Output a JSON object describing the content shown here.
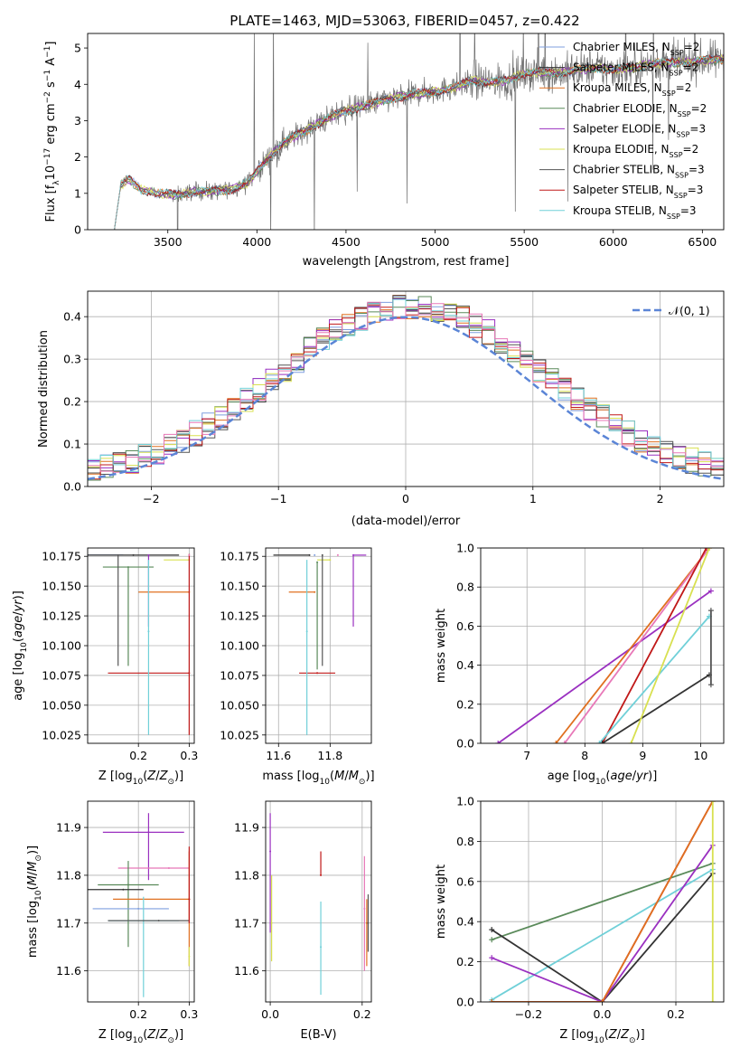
{
  "title": "PLATE=1463, MJD=53063, FIBERID=0457, z=0.422",
  "colors": {
    "Chabrier MILES": "#7f9fdf",
    "Salpeter MILES": "#333333",
    "Kroupa MILES": "#e07020",
    "Chabrier ELODIE": "#5a8a5a",
    "Salpeter ELODIE": "#9a30c0",
    "Kroupa ELODIE": "#d8e050",
    "Chabrier STELIB": "#555555",
    "Salpeter STELIB": "#c01818",
    "Kroupa STELIB": "#70d0d8",
    "extra_pink": "#e878b8",
    "normal": "#5b85d6"
  },
  "chart_data": [
    {
      "id": "spectrum",
      "type": "line",
      "xlabel": "wavelength [Angstrom, rest frame]",
      "ylabel": "Flux [f_λ10^-17 erg cm^-2 s^-1 A^-1]",
      "xlim": [
        3050,
        6620
      ],
      "ylim": [
        0,
        5.4
      ],
      "xticks": [
        3500,
        4000,
        4500,
        5000,
        5500,
        6000,
        6500
      ],
      "yticks": [
        0,
        1,
        2,
        3,
        4,
        5
      ],
      "grid": false,
      "legend_position": "top-right",
      "legend": [
        {
          "name": "Chabrier MILES",
          "nssp": "2"
        },
        {
          "name": "Salpeter MILES",
          "nssp": "2"
        },
        {
          "name": "Kroupa MILES",
          "nssp": "2"
        },
        {
          "name": "Chabrier ELODIE",
          "nssp": "2"
        },
        {
          "name": "Salpeter ELODIE",
          "nssp": "3"
        },
        {
          "name": "Kroupa ELODIE",
          "nssp": "2"
        },
        {
          "name": "Chabrier STELIB",
          "nssp": "3"
        },
        {
          "name": "Salpeter STELIB",
          "nssp": "3"
        },
        {
          "name": "Kroupa STELIB",
          "nssp": "3"
        }
      ],
      "model_start": 3200,
      "data_start": 3500,
      "continuum": [
        [
          3200,
          0
        ],
        [
          3230,
          1.2
        ],
        [
          3280,
          1.4
        ],
        [
          3350,
          1.1
        ],
        [
          3450,
          1.0
        ],
        [
          3550,
          0.95
        ],
        [
          3650,
          1.05
        ],
        [
          3750,
          1.05
        ],
        [
          3850,
          1.1
        ],
        [
          3950,
          1.3
        ],
        [
          4050,
          1.9
        ],
        [
          4150,
          2.4
        ],
        [
          4300,
          2.8
        ],
        [
          4450,
          3.2
        ],
        [
          4600,
          3.4
        ],
        [
          4750,
          3.6
        ],
        [
          4900,
          3.75
        ],
        [
          5000,
          3.8
        ],
        [
          5100,
          3.9
        ],
        [
          5200,
          4.1
        ],
        [
          5300,
          4.05
        ],
        [
          5400,
          4.1
        ],
        [
          5500,
          4.3
        ],
        [
          5600,
          4.35
        ],
        [
          5700,
          4.3
        ],
        [
          5800,
          4.4
        ],
        [
          5900,
          4.45
        ],
        [
          6000,
          4.4
        ],
        [
          6100,
          4.45
        ],
        [
          6200,
          4.55
        ],
        [
          6300,
          4.6
        ],
        [
          6400,
          4.6
        ],
        [
          6500,
          4.65
        ],
        [
          6620,
          4.7
        ]
      ]
    },
    {
      "id": "residuals",
      "type": "line",
      "xlabel": "(data-model)/error",
      "ylabel": "Normed distribution",
      "xlim": [
        -2.5,
        2.5
      ],
      "ylim": [
        0,
        0.46
      ],
      "xticks": [
        -2,
        -1,
        0,
        1,
        2
      ],
      "yticks": [
        0.0,
        0.1,
        0.2,
        0.3,
        0.4
      ],
      "grid": true,
      "legend_label": "𝒩(0, 1)",
      "legend_position": "top-right"
    },
    {
      "id": "z_age",
      "type": "scatter",
      "xlabel": "Z [log10(Z/Z⊙)]",
      "ylabel": "age [log10(age/yr)]",
      "xlim": [
        0.1,
        0.31
      ],
      "ylim": [
        10.018,
        10.182
      ],
      "xticks": [
        0.2,
        0.3
      ],
      "yticks": [
        10.025,
        10.05,
        10.075,
        10.1,
        10.125,
        10.15,
        10.175
      ],
      "grid": true,
      "points": [
        {
          "model": "Chabrier MILES",
          "x": 0.1,
          "y": 10.176,
          "xerr": [
            0.0,
            0.07
          ],
          "yerr": [
            0.0,
            0.0
          ]
        },
        {
          "model": "Salpeter MILES",
          "x": 0.19,
          "y": 10.176,
          "xerr": [
            0.09,
            0.09
          ],
          "yerr": [
            0.0,
            0.0
          ]
        },
        {
          "model": "Kroupa MILES",
          "x": 0.3,
          "y": 10.145,
          "xerr": [
            0.1,
            0.0
          ],
          "yerr": [
            0.0,
            0.0
          ]
        },
        {
          "model": "Chabrier ELODIE",
          "x": 0.18,
          "y": 10.166,
          "xerr": [
            0.05,
            0.05
          ],
          "yerr": [
            0.083,
            0.0
          ]
        },
        {
          "model": "Salpeter ELODIE",
          "x": 0.22,
          "y": 10.176,
          "xerr": [
            0.0,
            0.0
          ],
          "yerr": [
            0.06,
            0.0
          ]
        },
        {
          "model": "Kroupa ELODIE",
          "x": 0.3,
          "y": 10.172,
          "xerr": [
            0.05,
            0.0
          ],
          "yerr": [
            0.0,
            0.0
          ]
        },
        {
          "model": "Chabrier STELIB",
          "x": 0.16,
          "y": 10.176,
          "xerr": [
            0.0,
            0.0
          ],
          "yerr": [
            0.093,
            0.0
          ]
        },
        {
          "model": "Salpeter STELIB",
          "x": 0.3,
          "y": 10.077,
          "xerr": [
            0.16,
            0.0
          ],
          "yerr": [
            0.052,
            0.1
          ]
        },
        {
          "model": "Kroupa STELIB",
          "x": 0.22,
          "y": 10.112,
          "xerr": [
            0.0,
            0.0
          ],
          "yerr": [
            0.087,
            0.06
          ]
        },
        {
          "model": "extra_pink",
          "x": 0.3,
          "y": 10.176,
          "xerr": [
            0.0,
            0.0
          ],
          "yerr": [
            0.0,
            0.0
          ]
        }
      ]
    },
    {
      "id": "mass_age",
      "type": "scatter",
      "xlabel": "mass [log10(M/M⊙)]",
      "ylabel": "",
      "xlim": [
        11.55,
        11.96
      ],
      "ylim": [
        10.018,
        10.182
      ],
      "xticks": [
        11.6,
        11.8
      ],
      "yticks": [
        10.025,
        10.05,
        10.075,
        10.1,
        10.125,
        10.15,
        10.175
      ],
      "grid": true,
      "points": [
        {
          "model": "Chabrier MILES",
          "x": 11.74,
          "y": 10.176,
          "xerr": [
            0.0,
            0.0
          ],
          "yerr": [
            0.0,
            0.0
          ]
        },
        {
          "model": "Salpeter MILES",
          "x": 11.72,
          "y": 10.176,
          "xerr": [
            0.14,
            0.0
          ],
          "yerr": [
            0.0,
            0.0
          ]
        },
        {
          "model": "Kroupa MILES",
          "x": 11.74,
          "y": 10.145,
          "xerr": [
            0.1,
            0.0
          ],
          "yerr": [
            0.0,
            0.0
          ]
        },
        {
          "model": "Chabrier ELODIE",
          "x": 11.75,
          "y": 10.17,
          "xerr": [
            0.0,
            0.0
          ],
          "yerr": [
            0.09,
            0.0
          ]
        },
        {
          "model": "Salpeter ELODIE",
          "x": 11.89,
          "y": 10.176,
          "xerr": [
            0.0,
            0.05
          ],
          "yerr": [
            0.06,
            0.0
          ]
        },
        {
          "model": "Kroupa ELODIE",
          "x": 11.8,
          "y": 10.172,
          "xerr": [
            0.05,
            0.0
          ],
          "yerr": [
            0.0,
            0.0
          ]
        },
        {
          "model": "Chabrier STELIB",
          "x": 11.77,
          "y": 10.176,
          "xerr": [
            0.0,
            0.0
          ],
          "yerr": [
            0.093,
            0.0
          ]
        },
        {
          "model": "Salpeter STELIB",
          "x": 11.75,
          "y": 10.077,
          "xerr": [
            0.07,
            0.07
          ],
          "yerr": [
            0.0,
            0.0
          ]
        },
        {
          "model": "Kroupa STELIB",
          "x": 11.71,
          "y": 10.112,
          "xerr": [
            0.0,
            0.0
          ],
          "yerr": [
            0.087,
            0.06
          ]
        },
        {
          "model": "extra_pink",
          "x": 11.83,
          "y": 10.176,
          "xerr": [
            0.0,
            0.0
          ],
          "yerr": [
            0.0,
            0.0
          ]
        }
      ]
    },
    {
      "id": "age_weight",
      "type": "line",
      "xlabel": "age [log10(age/yr)]",
      "ylabel": "mass weight",
      "xlim": [
        6.2,
        10.4
      ],
      "ylim": [
        0,
        1
      ],
      "xticks": [
        7,
        8,
        9,
        10
      ],
      "yticks": [
        0.0,
        0.2,
        0.4,
        0.6,
        0.8,
        1.0
      ],
      "grid": true,
      "series": [
        {
          "model": "Salpeter ELODIE",
          "x": [
            6.5,
            10.18
          ],
          "y": [
            0.0,
            0.78
          ]
        },
        {
          "model": "Kroupa MILES",
          "x": [
            7.5,
            10.15
          ],
          "y": [
            0.0,
            1.0
          ]
        },
        {
          "model": "extra_pink",
          "x": [
            7.65,
            10.15
          ],
          "y": [
            0.0,
            1.0
          ]
        },
        {
          "model": "Salpeter STELIB",
          "x": [
            8.3,
            10.1
          ],
          "y": [
            0.0,
            1.0
          ]
        },
        {
          "model": "Kroupa STELIB",
          "x": [
            8.25,
            10.15
          ],
          "y": [
            0.0,
            0.65
          ]
        },
        {
          "model": "Salpeter MILES",
          "x": [
            8.3,
            10.15
          ],
          "y": [
            0.0,
            0.35
          ]
        },
        {
          "model": "Kroupa ELODIE",
          "x": [
            8.8,
            10.15
          ],
          "y": [
            0.0,
            1.0
          ]
        },
        {
          "model": "Chabrier STELIB",
          "x": [
            10.18,
            10.18
          ],
          "y": [
            0.3,
            0.68
          ]
        }
      ]
    },
    {
      "id": "z_mass",
      "type": "scatter",
      "xlabel": "Z [log10(Z/Z⊙)]",
      "ylabel": "mass [log10(M/M⊙)]",
      "xlim": [
        0.1,
        0.31
      ],
      "ylim": [
        11.535,
        11.955
      ],
      "xticks": [
        0.2,
        0.3
      ],
      "yticks": [
        11.6,
        11.7,
        11.8,
        11.9
      ],
      "grid": true,
      "points": [
        {
          "model": "Salpeter ELODIE",
          "x": 0.22,
          "y": 11.89,
          "xerr": [
            0.09,
            0.07
          ],
          "yerr": [
            0.1,
            0.04
          ]
        },
        {
          "model": "extra_pink",
          "x": 0.26,
          "y": 11.815,
          "xerr": [
            0.1,
            0.04
          ],
          "yerr": [
            0.0,
            0.0
          ]
        },
        {
          "model": "Chabrier ELODIE",
          "x": 0.18,
          "y": 11.78,
          "xerr": [
            0.06,
            0.06
          ],
          "yerr": [
            0.13,
            0.05
          ]
        },
        {
          "model": "Salpeter MILES",
          "x": 0.17,
          "y": 11.77,
          "xerr": [
            0.07,
            0.04
          ],
          "yerr": [
            0.0,
            0.0
          ]
        },
        {
          "model": "Kroupa MILES",
          "x": 0.3,
          "y": 11.75,
          "xerr": [
            0.15,
            0.0
          ],
          "yerr": [
            0.14,
            0.1
          ]
        },
        {
          "model": "Chabrier MILES",
          "x": 0.2,
          "y": 11.73,
          "xerr": [
            0.09,
            0.06
          ],
          "yerr": [
            0.0,
            0.0
          ]
        },
        {
          "model": "Kroupa STELIB",
          "x": 0.21,
          "y": 11.705,
          "xerr": [
            0.07,
            0.07
          ],
          "yerr": [
            0.16,
            0.05
          ]
        },
        {
          "model": "Chabrier STELIB",
          "x": 0.24,
          "y": 11.705,
          "xerr": [
            0.1,
            0.06
          ],
          "yerr": [
            0.0,
            0.0
          ]
        },
        {
          "model": "Salpeter STELIB",
          "x": 0.3,
          "y": 11.75,
          "xerr": [
            0.0,
            0.0
          ],
          "yerr": [
            0.05,
            0.11
          ]
        },
        {
          "model": "Kroupa ELODIE",
          "x": 0.3,
          "y": 11.63,
          "xerr": [
            0.0,
            0.0
          ],
          "yerr": [
            0.02,
            0.02
          ]
        }
      ]
    },
    {
      "id": "ebv_mass",
      "type": "scatter",
      "xlabel": "E(B-V)",
      "ylabel": "",
      "xlim": [
        -0.01,
        0.22
      ],
      "ylim": [
        11.535,
        11.955
      ],
      "xticks": [
        0.0,
        0.2
      ],
      "yticks": [
        11.6,
        11.7,
        11.8,
        11.9
      ],
      "grid": true,
      "points": [
        {
          "model": "Salpeter ELODIE",
          "x": 0.0,
          "y": 11.85,
          "xerr": [
            0.0,
            0.0
          ],
          "yerr": [
            0.17,
            0.08
          ]
        },
        {
          "model": "Kroupa ELODIE",
          "x": 0.003,
          "y": 11.7,
          "xerr": [
            0.0,
            0.0
          ],
          "yerr": [
            0.08,
            0.1
          ]
        },
        {
          "model": "Salpeter STELIB",
          "x": 0.11,
          "y": 11.8,
          "xerr": [
            0.0,
            0.0
          ],
          "yerr": [
            0.0,
            0.05
          ]
        },
        {
          "model": "Kroupa STELIB",
          "x": 0.11,
          "y": 11.65,
          "xerr": [
            0.0,
            0.0
          ],
          "yerr": [
            0.1,
            0.095
          ]
        },
        {
          "model": "extra_pink",
          "x": 0.205,
          "y": 11.73,
          "xerr": [
            0.0,
            0.0
          ],
          "yerr": [
            0.13,
            0.11
          ]
        },
        {
          "model": "Kroupa MILES",
          "x": 0.21,
          "y": 11.7,
          "xerr": [
            0.0,
            0.0
          ],
          "yerr": [
            0.09,
            0.05
          ]
        },
        {
          "model": "Chabrier STELIB",
          "x": 0.213,
          "y": 11.7,
          "xerr": [
            0.0,
            0.0
          ],
          "yerr": [
            0.06,
            0.06
          ]
        }
      ]
    },
    {
      "id": "z_weight",
      "type": "line",
      "xlabel": "Z [log10(Z/Z⊙)]",
      "ylabel": "mass weight",
      "xlim": [
        -0.33,
        0.33
      ],
      "ylim": [
        0,
        1
      ],
      "xticks": [
        -0.2,
        0.0,
        0.2
      ],
      "yticks": [
        0.0,
        0.2,
        0.4,
        0.6,
        0.8,
        1.0
      ],
      "grid": true,
      "series": [
        {
          "model": "Chabrier ELODIE",
          "x": [
            -0.3,
            0.3
          ],
          "y": [
            0.31,
            0.69
          ]
        },
        {
          "model": "Kroupa STELIB",
          "x": [
            -0.3,
            0.3
          ],
          "y": [
            0.01,
            0.66
          ]
        },
        {
          "model": "Salpeter MILES",
          "x": [
            -0.3,
            0.0,
            0.3
          ],
          "y": [
            0.36,
            0.0,
            0.64
          ]
        },
        {
          "model": "Salpeter ELODIE",
          "x": [
            -0.3,
            0.0,
            0.3
          ],
          "y": [
            0.22,
            0.0,
            0.78
          ]
        },
        {
          "model": "Salpeter STELIB",
          "x": [
            -0.3,
            0.0,
            0.3
          ],
          "y": [
            0.0,
            0.0,
            1.0
          ]
        },
        {
          "model": "Kroupa MILES",
          "x": [
            -0.3,
            0.0,
            0.3
          ],
          "y": [
            0.0,
            0.0,
            1.0
          ]
        },
        {
          "model": "Kroupa ELODIE",
          "x": [
            0.3,
            0.3
          ],
          "y": [
            0.0,
            1.0
          ]
        }
      ]
    }
  ]
}
